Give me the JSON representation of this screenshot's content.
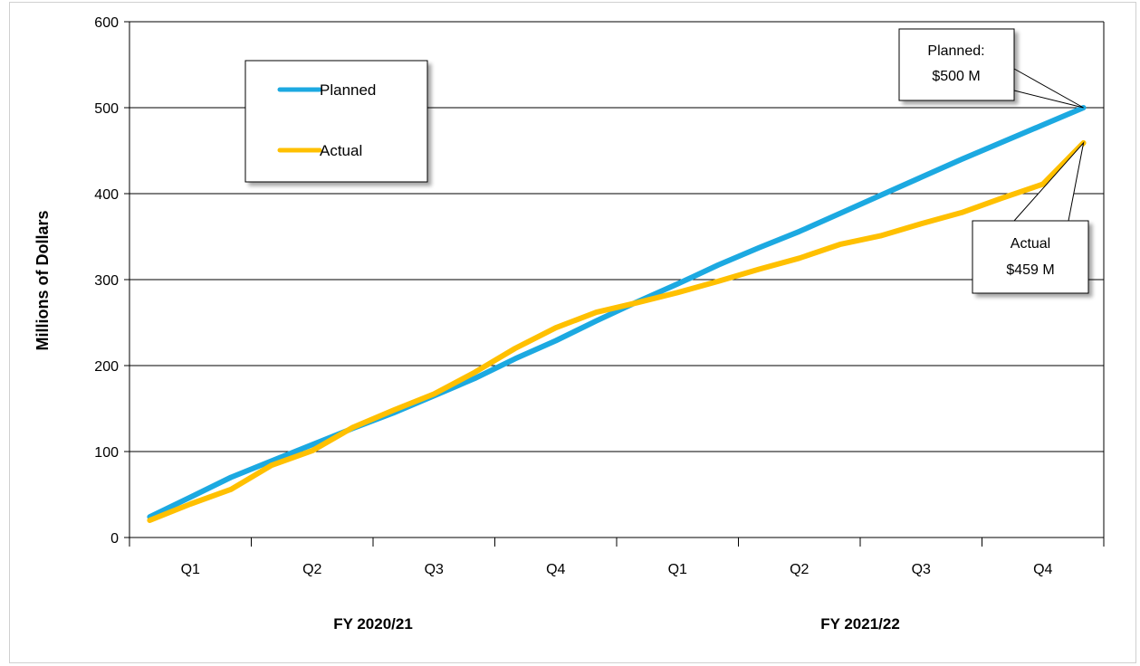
{
  "chart_data": {
    "type": "line",
    "title": "",
    "ylabel": "Millions of Dollars",
    "xlabel": "",
    "ylim": [
      0,
      600
    ],
    "yticks": [
      0,
      100,
      200,
      300,
      400,
      500,
      600
    ],
    "grid": true,
    "legend_position": "top-left",
    "quarter_labels": [
      "Q1",
      "Q2",
      "Q3",
      "Q4",
      "Q1",
      "Q2",
      "Q3",
      "Q4"
    ],
    "fiscal_years": [
      {
        "label": "FY 2020/21"
      },
      {
        "label": "FY 2021/22"
      }
    ],
    "x_months": [
      1,
      2,
      3,
      4,
      5,
      6,
      7,
      8,
      9,
      10,
      11,
      12,
      13,
      14,
      15,
      16,
      17,
      18,
      19,
      20,
      21,
      22,
      23,
      24
    ],
    "series": [
      {
        "name": "Planned",
        "color": "#1CA9E1",
        "values": [
          24,
          47,
          70,
          89,
          108,
          127,
          145,
          165,
          185,
          208,
          229,
          252,
          274,
          295,
          317,
          337,
          356,
          377,
          398,
          419,
          440,
          460,
          480,
          500
        ]
      },
      {
        "name": "Actual",
        "color": "#FFC000",
        "values": [
          20,
          39,
          56,
          84,
          101,
          128,
          148,
          167,
          192,
          220,
          244,
          262,
          273,
          285,
          298,
          312,
          325,
          341,
          351,
          365,
          378,
          395,
          411,
          459
        ]
      }
    ],
    "annotations": [
      {
        "line1": "Planned:",
        "line2": "$500 M",
        "series": "Planned",
        "month": 24,
        "value": 500
      },
      {
        "line1": "Actual",
        "line2": "$459 M",
        "series": "Actual",
        "month": 24,
        "value": 459
      }
    ]
  }
}
